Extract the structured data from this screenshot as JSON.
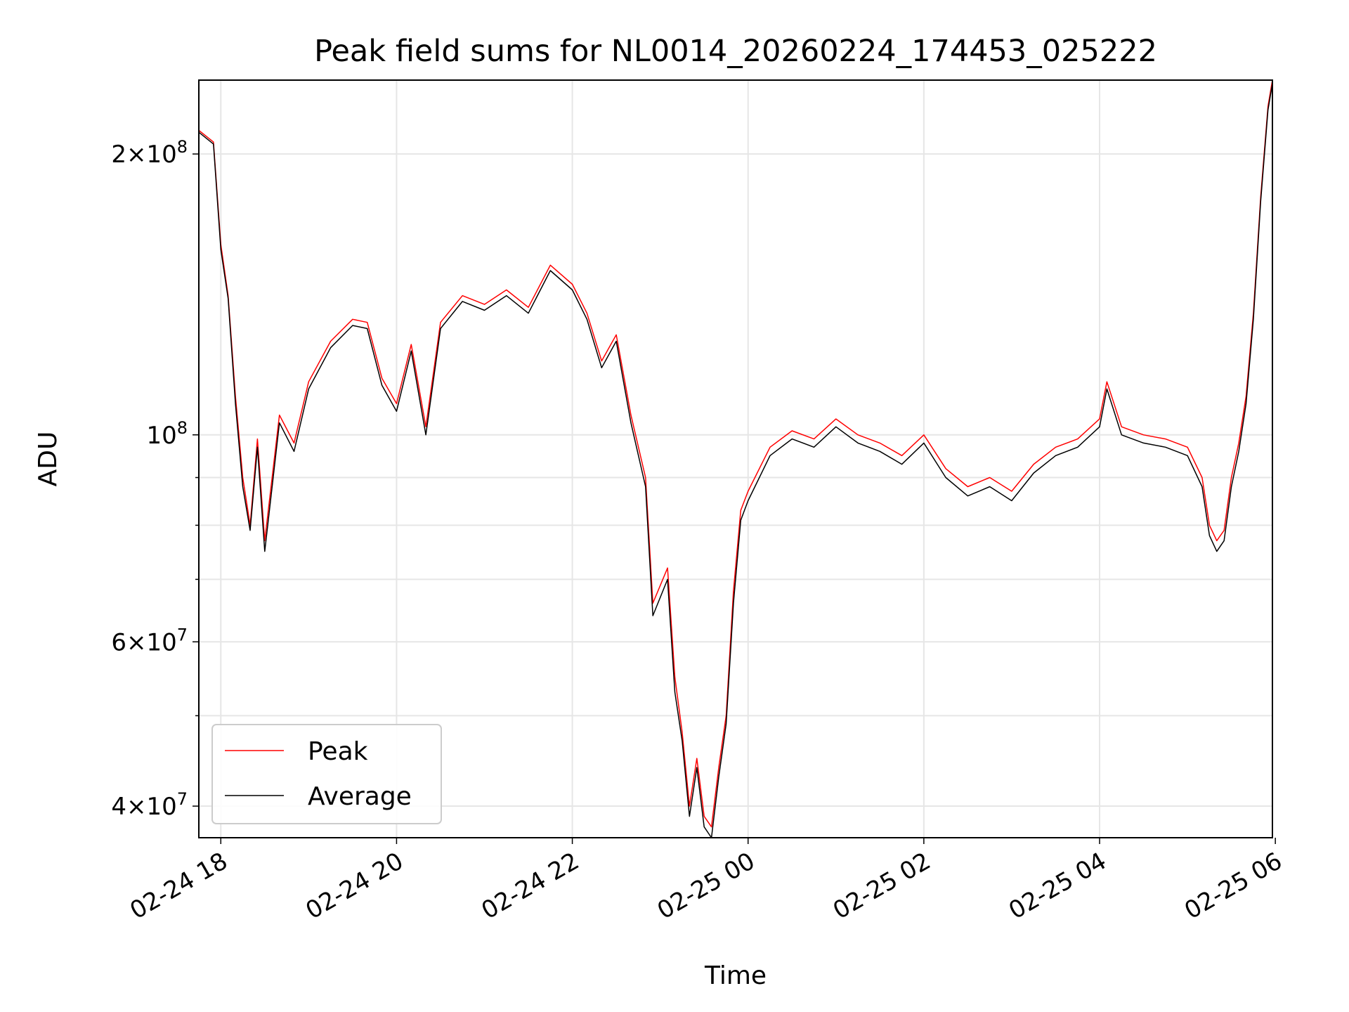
{
  "chart_data": {
    "type": "line",
    "title": "Peak field sums for NL0014_20260224_174453_025222",
    "xlabel": "Time",
    "ylabel": "ADU",
    "y_scale": "log",
    "ylim": [
      37000000,
      240000000
    ],
    "xlim": [
      "2026-02-24 17:45",
      "2026-02-25 05:58"
    ],
    "x_ticks": [
      {
        "value": "2026-02-24 18:00",
        "label": "02-24 18"
      },
      {
        "value": "2026-02-24 20:00",
        "label": "02-24 20"
      },
      {
        "value": "2026-02-24 22:00",
        "label": "02-24 22"
      },
      {
        "value": "2026-02-25 00:00",
        "label": "02-25 00"
      },
      {
        "value": "2026-02-25 02:00",
        "label": "02-25 02"
      },
      {
        "value": "2026-02-25 04:00",
        "label": "02-25 04"
      },
      {
        "value": "2026-02-25 06:00",
        "label": "02-25 06"
      }
    ],
    "y_major_ticks": [
      {
        "value": 40000000,
        "mantissa": "4",
        "exponent": "7"
      },
      {
        "value": 60000000,
        "mantissa": "6",
        "exponent": "7"
      },
      {
        "value": 100000000,
        "mantissa": "",
        "exponent": "8"
      },
      {
        "value": 200000000,
        "mantissa": "2",
        "exponent": "8"
      }
    ],
    "y_minor_ticks": [
      50000000,
      70000000,
      80000000,
      90000000
    ],
    "grid": true,
    "legend_position": "lower-left",
    "series": [
      {
        "name": "Peak",
        "color": "#ff0000",
        "points": [
          [
            "2026-02-24 17:45",
            212000000
          ],
          [
            "2026-02-24 17:55",
            206000000
          ],
          [
            "2026-02-24 18:00",
            160000000
          ],
          [
            "2026-02-24 18:05",
            141000000
          ],
          [
            "2026-02-24 18:10",
            110000000
          ],
          [
            "2026-02-24 18:15",
            90000000
          ],
          [
            "2026-02-24 18:20",
            80000000
          ],
          [
            "2026-02-24 18:25",
            99000000
          ],
          [
            "2026-02-24 18:30",
            77000000
          ],
          [
            "2026-02-24 18:40",
            105000000
          ],
          [
            "2026-02-24 18:50",
            98000000
          ],
          [
            "2026-02-24 19:00",
            114000000
          ],
          [
            "2026-02-24 19:15",
            126000000
          ],
          [
            "2026-02-24 19:30",
            133000000
          ],
          [
            "2026-02-24 19:40",
            132000000
          ],
          [
            "2026-02-24 19:50",
            115000000
          ],
          [
            "2026-02-24 20:00",
            108000000
          ],
          [
            "2026-02-24 20:10",
            125000000
          ],
          [
            "2026-02-24 20:20",
            102000000
          ],
          [
            "2026-02-24 20:30",
            132000000
          ],
          [
            "2026-02-24 20:45",
            141000000
          ],
          [
            "2026-02-24 21:00",
            138000000
          ],
          [
            "2026-02-24 21:15",
            143000000
          ],
          [
            "2026-02-24 21:30",
            137000000
          ],
          [
            "2026-02-24 21:45",
            152000000
          ],
          [
            "2026-02-24 22:00",
            145000000
          ],
          [
            "2026-02-24 22:10",
            135000000
          ],
          [
            "2026-02-24 22:20",
            120000000
          ],
          [
            "2026-02-24 22:30",
            128000000
          ],
          [
            "2026-02-24 22:40",
            105000000
          ],
          [
            "2026-02-24 22:50",
            90000000
          ],
          [
            "2026-02-24 22:55",
            66000000
          ],
          [
            "2026-02-24 23:05",
            72000000
          ],
          [
            "2026-02-24 23:10",
            55000000
          ],
          [
            "2026-02-24 23:15",
            48000000
          ],
          [
            "2026-02-24 23:20",
            40000000
          ],
          [
            "2026-02-24 23:25",
            45000000
          ],
          [
            "2026-02-24 23:30",
            39000000
          ],
          [
            "2026-02-24 23:35",
            38000000
          ],
          [
            "2026-02-24 23:40",
            44000000
          ],
          [
            "2026-02-24 23:45",
            50000000
          ],
          [
            "2026-02-24 23:50",
            68000000
          ],
          [
            "2026-02-24 23:55",
            83000000
          ],
          [
            "2026-02-25 00:00",
            87000000
          ],
          [
            "2026-02-25 00:15",
            97000000
          ],
          [
            "2026-02-25 00:30",
            101000000
          ],
          [
            "2026-02-25 00:45",
            99000000
          ],
          [
            "2026-02-25 01:00",
            104000000
          ],
          [
            "2026-02-25 01:15",
            100000000
          ],
          [
            "2026-02-25 01:30",
            98000000
          ],
          [
            "2026-02-25 01:45",
            95000000
          ],
          [
            "2026-02-25 02:00",
            100000000
          ],
          [
            "2026-02-25 02:15",
            92000000
          ],
          [
            "2026-02-25 02:30",
            88000000
          ],
          [
            "2026-02-25 02:45",
            90000000
          ],
          [
            "2026-02-25 03:00",
            87000000
          ],
          [
            "2026-02-25 03:15",
            93000000
          ],
          [
            "2026-02-25 03:30",
            97000000
          ],
          [
            "2026-02-25 03:45",
            99000000
          ],
          [
            "2026-02-25 04:00",
            104000000
          ],
          [
            "2026-02-25 04:05",
            114000000
          ],
          [
            "2026-02-25 04:15",
            102000000
          ],
          [
            "2026-02-25 04:30",
            100000000
          ],
          [
            "2026-02-25 04:45",
            99000000
          ],
          [
            "2026-02-25 05:00",
            97000000
          ],
          [
            "2026-02-25 05:10",
            90000000
          ],
          [
            "2026-02-25 05:15",
            80000000
          ],
          [
            "2026-02-25 05:20",
            77000000
          ],
          [
            "2026-02-25 05:25",
            79000000
          ],
          [
            "2026-02-25 05:30",
            90000000
          ],
          [
            "2026-02-25 05:35",
            98000000
          ],
          [
            "2026-02-25 05:40",
            110000000
          ],
          [
            "2026-02-25 05:45",
            135000000
          ],
          [
            "2026-02-25 05:50",
            180000000
          ],
          [
            "2026-02-25 05:55",
            225000000
          ],
          [
            "2026-02-25 05:58",
            240000000
          ]
        ]
      },
      {
        "name": "Average",
        "color": "#000000",
        "points": [
          [
            "2026-02-24 17:45",
            211000000
          ],
          [
            "2026-02-24 17:55",
            205000000
          ],
          [
            "2026-02-24 18:00",
            158000000
          ],
          [
            "2026-02-24 18:05",
            140000000
          ],
          [
            "2026-02-24 18:10",
            108000000
          ],
          [
            "2026-02-24 18:15",
            88000000
          ],
          [
            "2026-02-24 18:20",
            79000000
          ],
          [
            "2026-02-24 18:25",
            97000000
          ],
          [
            "2026-02-24 18:30",
            75000000
          ],
          [
            "2026-02-24 18:40",
            103000000
          ],
          [
            "2026-02-24 18:50",
            96000000
          ],
          [
            "2026-02-24 19:00",
            112000000
          ],
          [
            "2026-02-24 19:15",
            124000000
          ],
          [
            "2026-02-24 19:30",
            131000000
          ],
          [
            "2026-02-24 19:40",
            130000000
          ],
          [
            "2026-02-24 19:50",
            113000000
          ],
          [
            "2026-02-24 20:00",
            106000000
          ],
          [
            "2026-02-24 20:10",
            123000000
          ],
          [
            "2026-02-24 20:20",
            100000000
          ],
          [
            "2026-02-24 20:30",
            130000000
          ],
          [
            "2026-02-24 20:45",
            139000000
          ],
          [
            "2026-02-24 21:00",
            136000000
          ],
          [
            "2026-02-24 21:15",
            141000000
          ],
          [
            "2026-02-24 21:30",
            135000000
          ],
          [
            "2026-02-24 21:45",
            150000000
          ],
          [
            "2026-02-24 22:00",
            143000000
          ],
          [
            "2026-02-24 22:10",
            133000000
          ],
          [
            "2026-02-24 22:20",
            118000000
          ],
          [
            "2026-02-24 22:30",
            126000000
          ],
          [
            "2026-02-24 22:40",
            103000000
          ],
          [
            "2026-02-24 22:50",
            88000000
          ],
          [
            "2026-02-24 22:55",
            64000000
          ],
          [
            "2026-02-24 23:05",
            70000000
          ],
          [
            "2026-02-24 23:10",
            53000000
          ],
          [
            "2026-02-24 23:15",
            47000000
          ],
          [
            "2026-02-24 23:20",
            39000000
          ],
          [
            "2026-02-24 23:25",
            44000000
          ],
          [
            "2026-02-24 23:30",
            38000000
          ],
          [
            "2026-02-24 23:35",
            37000000
          ],
          [
            "2026-02-24 23:40",
            43000000
          ],
          [
            "2026-02-24 23:45",
            49000000
          ],
          [
            "2026-02-24 23:50",
            66000000
          ],
          [
            "2026-02-24 23:55",
            81000000
          ],
          [
            "2026-02-25 00:00",
            85000000
          ],
          [
            "2026-02-25 00:15",
            95000000
          ],
          [
            "2026-02-25 00:30",
            99000000
          ],
          [
            "2026-02-25 00:45",
            97000000
          ],
          [
            "2026-02-25 01:00",
            102000000
          ],
          [
            "2026-02-25 01:15",
            98000000
          ],
          [
            "2026-02-25 01:30",
            96000000
          ],
          [
            "2026-02-25 01:45",
            93000000
          ],
          [
            "2026-02-25 02:00",
            98000000
          ],
          [
            "2026-02-25 02:15",
            90000000
          ],
          [
            "2026-02-25 02:30",
            86000000
          ],
          [
            "2026-02-25 02:45",
            88000000
          ],
          [
            "2026-02-25 03:00",
            85000000
          ],
          [
            "2026-02-25 03:15",
            91000000
          ],
          [
            "2026-02-25 03:30",
            95000000
          ],
          [
            "2026-02-25 03:45",
            97000000
          ],
          [
            "2026-02-25 04:00",
            102000000
          ],
          [
            "2026-02-25 04:05",
            112000000
          ],
          [
            "2026-02-25 04:15",
            100000000
          ],
          [
            "2026-02-25 04:30",
            98000000
          ],
          [
            "2026-02-25 04:45",
            97000000
          ],
          [
            "2026-02-25 05:00",
            95000000
          ],
          [
            "2026-02-25 05:10",
            88000000
          ],
          [
            "2026-02-25 05:15",
            78000000
          ],
          [
            "2026-02-25 05:20",
            75000000
          ],
          [
            "2026-02-25 05:25",
            77000000
          ],
          [
            "2026-02-25 05:30",
            88000000
          ],
          [
            "2026-02-25 05:35",
            96000000
          ],
          [
            "2026-02-25 05:40",
            108000000
          ],
          [
            "2026-02-25 05:45",
            133000000
          ],
          [
            "2026-02-25 05:50",
            178000000
          ],
          [
            "2026-02-25 05:55",
            223000000
          ],
          [
            "2026-02-25 05:58",
            238000000
          ]
        ]
      }
    ]
  }
}
